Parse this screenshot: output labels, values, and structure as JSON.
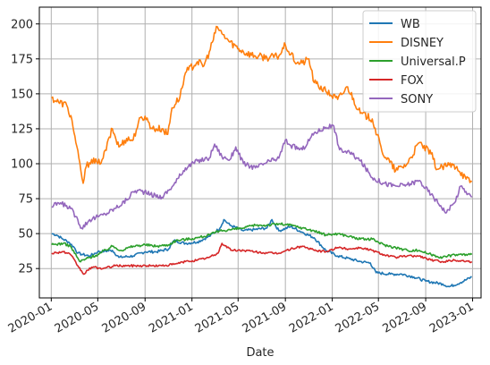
{
  "chart_data": {
    "type": "line",
    "title": "",
    "xlabel": "Date",
    "ylabel": "",
    "xlim": [
      "2019-12-01",
      "2023-01-23"
    ],
    "ylim": [
      4,
      212
    ],
    "grid": true,
    "legend_position": "top-right",
    "x_ticks": [
      "2020-01-01",
      "2020-05-01",
      "2020-09-01",
      "2021-01-01",
      "2021-05-01",
      "2021-09-01",
      "2022-01-01",
      "2022-05-01",
      "2022-09-01",
      "2023-01-01"
    ],
    "x_tick_labels": [
      "2020-01",
      "2020-05",
      "2020-09",
      "2021-01",
      "2021-05",
      "2021-09",
      "2022-01",
      "2022-05",
      "2022-09",
      "2023-01"
    ],
    "y_ticks": [
      25,
      50,
      75,
      100,
      125,
      150,
      175,
      200
    ],
    "y_tick_labels": [
      "25",
      "50",
      "75",
      "100",
      "125",
      "150",
      "175",
      "200"
    ],
    "series": [
      {
        "name": "WB",
        "color": "#1f77b4",
        "points": [
          [
            "2020-01-02",
            50
          ],
          [
            "2020-01-15",
            49
          ],
          [
            "2020-02-01",
            46
          ],
          [
            "2020-02-15",
            44
          ],
          [
            "2020-03-01",
            40
          ],
          [
            "2020-03-10",
            36
          ],
          [
            "2020-03-23",
            35
          ],
          [
            "2020-04-10",
            34
          ],
          [
            "2020-05-01",
            37
          ],
          [
            "2020-06-08",
            38
          ],
          [
            "2020-06-25",
            33
          ],
          [
            "2020-08-01",
            34
          ],
          [
            "2020-09-01",
            37
          ],
          [
            "2020-10-01",
            37
          ],
          [
            "2020-11-01",
            39
          ],
          [
            "2020-11-15",
            45
          ],
          [
            "2020-12-15",
            43
          ],
          [
            "2021-01-15",
            44
          ],
          [
            "2021-02-15",
            48
          ],
          [
            "2021-03-15",
            54
          ],
          [
            "2021-03-25",
            60
          ],
          [
            "2021-04-10",
            56
          ],
          [
            "2021-05-15",
            52
          ],
          [
            "2021-06-15",
            53
          ],
          [
            "2021-07-15",
            54
          ],
          [
            "2021-07-28",
            60
          ],
          [
            "2021-08-15",
            52
          ],
          [
            "2021-09-15",
            55
          ],
          [
            "2021-10-15",
            51
          ],
          [
            "2021-11-15",
            47
          ],
          [
            "2021-12-15",
            38
          ],
          [
            "2022-01-15",
            34
          ],
          [
            "2022-02-15",
            32
          ],
          [
            "2022-03-15",
            30
          ],
          [
            "2022-04-10",
            29
          ],
          [
            "2022-04-25",
            22
          ],
          [
            "2022-06-01",
            21
          ],
          [
            "2022-07-01",
            21
          ],
          [
            "2022-08-01",
            19
          ],
          [
            "2022-09-01",
            16
          ],
          [
            "2022-10-15",
            14
          ],
          [
            "2022-11-01",
            12
          ],
          [
            "2022-12-01",
            15
          ],
          [
            "2022-12-30",
            19
          ]
        ]
      },
      {
        "name": "DISNEY",
        "color": "#ff7f0e",
        "points": [
          [
            "2020-01-02",
            147
          ],
          [
            "2020-01-20",
            144
          ],
          [
            "2020-02-10",
            142
          ],
          [
            "2020-02-24",
            131
          ],
          [
            "2020-03-05",
            115
          ],
          [
            "2020-03-18",
            95
          ],
          [
            "2020-03-24",
            86
          ],
          [
            "2020-04-01",
            98
          ],
          [
            "2020-04-15",
            103
          ],
          [
            "2020-05-01",
            100
          ],
          [
            "2020-05-15",
            104
          ],
          [
            "2020-06-08",
            125
          ],
          [
            "2020-06-25",
            112
          ],
          [
            "2020-07-15",
            118
          ],
          [
            "2020-08-01",
            117
          ],
          [
            "2020-08-15",
            130
          ],
          [
            "2020-09-01",
            134
          ],
          [
            "2020-09-20",
            125
          ],
          [
            "2020-10-15",
            125
          ],
          [
            "2020-10-30",
            121
          ],
          [
            "2020-11-10",
            140
          ],
          [
            "2020-12-01",
            148
          ],
          [
            "2020-12-15",
            165
          ],
          [
            "2021-01-15",
            173
          ],
          [
            "2021-02-01",
            170
          ],
          [
            "2021-02-15",
            180
          ],
          [
            "2021-03-08",
            198
          ],
          [
            "2021-03-20",
            193
          ],
          [
            "2021-04-10",
            187
          ],
          [
            "2021-05-15",
            180
          ],
          [
            "2021-06-15",
            177
          ],
          [
            "2021-07-15",
            176
          ],
          [
            "2021-08-15",
            177
          ],
          [
            "2021-09-01",
            185
          ],
          [
            "2021-09-15",
            178
          ],
          [
            "2021-10-01",
            172
          ],
          [
            "2021-10-15",
            172
          ],
          [
            "2021-11-01",
            175
          ],
          [
            "2021-11-15",
            158
          ],
          [
            "2021-12-15",
            152
          ],
          [
            "2022-01-15",
            146
          ],
          [
            "2022-02-10",
            155
          ],
          [
            "2022-03-15",
            136
          ],
          [
            "2022-04-15",
            132
          ],
          [
            "2022-05-10",
            109
          ],
          [
            "2022-06-15",
            95
          ],
          [
            "2022-07-15",
            100
          ],
          [
            "2022-08-15",
            115
          ],
          [
            "2022-09-15",
            107
          ],
          [
            "2022-10-01",
            96
          ],
          [
            "2022-11-01",
            99
          ],
          [
            "2022-11-21",
            98
          ],
          [
            "2022-12-15",
            89
          ],
          [
            "2022-12-30",
            87
          ]
        ]
      },
      {
        "name": "Universal.P",
        "color": "#2ca02c",
        "points": [
          [
            "2020-01-02",
            42
          ],
          [
            "2020-02-01",
            43
          ],
          [
            "2020-02-20",
            41
          ],
          [
            "2020-03-15",
            30
          ],
          [
            "2020-04-01",
            32
          ],
          [
            "2020-05-01",
            35
          ],
          [
            "2020-06-08",
            41
          ],
          [
            "2020-07-01",
            38
          ],
          [
            "2020-08-01",
            41
          ],
          [
            "2020-09-01",
            42
          ],
          [
            "2020-10-01",
            41
          ],
          [
            "2020-11-01",
            42
          ],
          [
            "2020-11-20",
            45
          ],
          [
            "2021-01-15",
            47
          ],
          [
            "2021-02-15",
            49
          ],
          [
            "2021-03-15",
            52
          ],
          [
            "2021-04-15",
            53
          ],
          [
            "2021-05-15",
            54
          ],
          [
            "2021-06-15",
            56
          ],
          [
            "2021-07-15",
            56
          ],
          [
            "2021-08-15",
            57
          ],
          [
            "2021-09-15",
            56
          ],
          [
            "2021-10-15",
            54
          ],
          [
            "2021-11-15",
            52
          ],
          [
            "2021-12-15",
            49
          ],
          [
            "2022-01-15",
            50
          ],
          [
            "2022-02-15",
            48
          ],
          [
            "2022-03-15",
            46
          ],
          [
            "2022-04-15",
            46
          ],
          [
            "2022-05-15",
            42
          ],
          [
            "2022-06-15",
            40
          ],
          [
            "2022-07-15",
            38
          ],
          [
            "2022-08-15",
            38
          ],
          [
            "2022-09-15",
            35
          ],
          [
            "2022-10-15",
            33
          ],
          [
            "2022-11-15",
            35
          ],
          [
            "2022-12-30",
            35
          ]
        ]
      },
      {
        "name": "FOX",
        "color": "#d62728",
        "points": [
          [
            "2020-01-02",
            36
          ],
          [
            "2020-02-01",
            37
          ],
          [
            "2020-02-20",
            35
          ],
          [
            "2020-03-10",
            27
          ],
          [
            "2020-03-25",
            21
          ],
          [
            "2020-04-15",
            26
          ],
          [
            "2020-05-15",
            25
          ],
          [
            "2020-06-15",
            27
          ],
          [
            "2020-07-15",
            27
          ],
          [
            "2020-08-15",
            27
          ],
          [
            "2020-09-15",
            27
          ],
          [
            "2020-10-15",
            27
          ],
          [
            "2020-11-15",
            28
          ],
          [
            "2020-12-15",
            30
          ],
          [
            "2021-01-15",
            31
          ],
          [
            "2021-02-15",
            33
          ],
          [
            "2021-03-10",
            36
          ],
          [
            "2021-03-20",
            43
          ],
          [
            "2021-04-15",
            38
          ],
          [
            "2021-05-15",
            38
          ],
          [
            "2021-06-15",
            37
          ],
          [
            "2021-07-15",
            36
          ],
          [
            "2021-08-15",
            36
          ],
          [
            "2021-09-15",
            39
          ],
          [
            "2021-10-15",
            41
          ],
          [
            "2021-11-15",
            38
          ],
          [
            "2021-12-15",
            37
          ],
          [
            "2022-01-15",
            40
          ],
          [
            "2022-02-15",
            39
          ],
          [
            "2022-03-15",
            40
          ],
          [
            "2022-04-15",
            38
          ],
          [
            "2022-05-15",
            35
          ],
          [
            "2022-06-15",
            33
          ],
          [
            "2022-07-15",
            34
          ],
          [
            "2022-08-15",
            34
          ],
          [
            "2022-09-15",
            31
          ],
          [
            "2022-10-15",
            30
          ],
          [
            "2022-11-15",
            31
          ],
          [
            "2022-12-30",
            30
          ]
        ]
      },
      {
        "name": "SONY",
        "color": "#9467bd",
        "points": [
          [
            "2020-01-02",
            69
          ],
          [
            "2020-01-20",
            72
          ],
          [
            "2020-02-10",
            70
          ],
          [
            "2020-02-20",
            68
          ],
          [
            "2020-03-10",
            60
          ],
          [
            "2020-03-20",
            54
          ],
          [
            "2020-04-10",
            60
          ],
          [
            "2020-05-01",
            62
          ],
          [
            "2020-05-20",
            64
          ],
          [
            "2020-06-15",
            68
          ],
          [
            "2020-07-15",
            74
          ],
          [
            "2020-08-01",
            80
          ],
          [
            "2020-08-15",
            81
          ],
          [
            "2020-09-15",
            78
          ],
          [
            "2020-10-15",
            76
          ],
          [
            "2020-11-15",
            85
          ],
          [
            "2020-12-15",
            97
          ],
          [
            "2021-01-15",
            102
          ],
          [
            "2021-02-15",
            104
          ],
          [
            "2021-03-01",
            114
          ],
          [
            "2021-03-20",
            105
          ],
          [
            "2021-04-10",
            103
          ],
          [
            "2021-04-25",
            112
          ],
          [
            "2021-05-15",
            100
          ],
          [
            "2021-06-15",
            97
          ],
          [
            "2021-07-15",
            101
          ],
          [
            "2021-08-15",
            104
          ],
          [
            "2021-09-01",
            117
          ],
          [
            "2021-09-15",
            113
          ],
          [
            "2021-10-15",
            110
          ],
          [
            "2021-11-15",
            122
          ],
          [
            "2021-12-15",
            126
          ],
          [
            "2022-01-05",
            127
          ],
          [
            "2022-01-20",
            110
          ],
          [
            "2022-02-15",
            108
          ],
          [
            "2022-03-15",
            102
          ],
          [
            "2022-04-15",
            90
          ],
          [
            "2022-05-15",
            86
          ],
          [
            "2022-06-15",
            84
          ],
          [
            "2022-07-15",
            85
          ],
          [
            "2022-08-15",
            88
          ],
          [
            "2022-09-15",
            78
          ],
          [
            "2022-10-10",
            70
          ],
          [
            "2022-10-25",
            65
          ],
          [
            "2022-11-15",
            72
          ],
          [
            "2022-12-01",
            84
          ],
          [
            "2022-12-15",
            80
          ],
          [
            "2022-12-30",
            76
          ]
        ]
      }
    ]
  }
}
